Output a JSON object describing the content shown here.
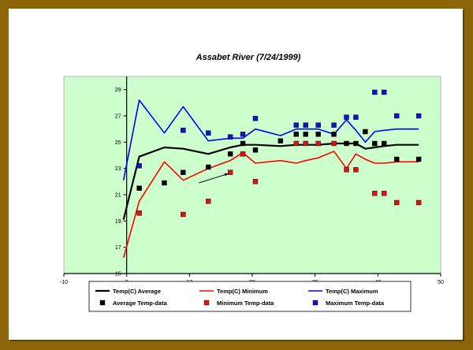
{
  "chart_data": {
    "type": "line",
    "title": "Assabet River (7/24/1999)",
    "xlabel": "",
    "ylabel": "",
    "xlim": [
      -10,
      50
    ],
    "ylim": [
      15,
      30
    ],
    "x_ticks": [
      -10,
      0,
      10,
      20,
      30,
      40,
      50
    ],
    "y_ticks": [
      15,
      17,
      19,
      21,
      23,
      25,
      27,
      29
    ],
    "grid": false,
    "plot_background": "#ccffcc",
    "legend_position": "bottom",
    "series": [
      {
        "name": "Temp(C) Average",
        "kind": "line",
        "color": "#000000",
        "x": [
          -0.5,
          2,
          6,
          9,
          13,
          16.5,
          18.5,
          20.5,
          24.5,
          27,
          28.5,
          30.5,
          33,
          35,
          36.5,
          38,
          39.5,
          41,
          43,
          46.5
        ],
        "y": [
          19.1,
          23.9,
          24.6,
          24.5,
          24.1,
          24.6,
          24.8,
          24.8,
          24.7,
          24.8,
          24.8,
          24.8,
          24.9,
          24.9,
          24.9,
          24.5,
          24.6,
          24.7,
          24.8,
          24.8
        ]
      },
      {
        "name": "Temp(C) Minimum",
        "kind": "line",
        "color": "#ff0000",
        "x": [
          -0.5,
          2,
          6,
          9,
          13,
          16.5,
          18.5,
          20.5,
          24.5,
          27,
          28.5,
          30.5,
          33,
          35,
          36.5,
          38,
          39.5,
          41,
          43,
          46.5
        ],
        "y": [
          16.2,
          20.5,
          23.5,
          22.1,
          23.0,
          23.6,
          24.2,
          23.4,
          23.6,
          23.4,
          23.6,
          23.8,
          24.3,
          23.0,
          24.1,
          23.7,
          23.4,
          23.4,
          23.5,
          23.5
        ]
      },
      {
        "name": "Temp(C) Maximum",
        "kind": "line",
        "color": "#0000ff",
        "x": [
          -0.5,
          2,
          6,
          9,
          13,
          16.5,
          18.5,
          20.5,
          24.5,
          27,
          28.5,
          30.5,
          33,
          35,
          36.5,
          38,
          39.5,
          41,
          43,
          46.5
        ],
        "y": [
          22.1,
          28.2,
          25.7,
          27.7,
          25.1,
          25.3,
          25.3,
          26.0,
          25.5,
          26.0,
          26.0,
          26.0,
          25.6,
          26.7,
          25.9,
          25.0,
          25.8,
          25.9,
          26.0,
          26.0
        ]
      },
      {
        "name": "Average Temp-data",
        "kind": "scatter",
        "color": "#000000",
        "x": [
          2,
          6,
          9,
          13,
          16.5,
          18.5,
          20.5,
          24.5,
          27,
          28.5,
          30.5,
          33,
          35,
          36.5,
          38,
          39.5,
          41,
          43,
          46.5
        ],
        "y": [
          21.5,
          21.9,
          22.7,
          23.1,
          24.1,
          24.9,
          24.4,
          25.1,
          25.6,
          25.6,
          25.6,
          25.6,
          24.9,
          24.9,
          25.8,
          24.9,
          24.9,
          23.7,
          23.7
        ]
      },
      {
        "name": "Minimum Temp-data",
        "kind": "scatter",
        "color": "#dd1111",
        "x": [
          2,
          9,
          13,
          16.5,
          18.5,
          20.5,
          27,
          28.5,
          30.5,
          33,
          35,
          36.5,
          39.5,
          41,
          43,
          46.5
        ],
        "y": [
          19.6,
          19.5,
          20.5,
          22.7,
          24.1,
          22.0,
          24.9,
          24.9,
          24.9,
          24.9,
          22.9,
          22.9,
          21.1,
          21.1,
          20.4,
          20.4
        ]
      },
      {
        "name": "Maximum Temp-data",
        "kind": "scatter",
        "color": "#1111cc",
        "x": [
          2,
          9,
          13,
          16.5,
          18.5,
          20.5,
          27,
          28.5,
          30.5,
          33,
          35,
          36.5,
          39.5,
          41,
          43,
          46.5
        ],
        "y": [
          23.2,
          25.9,
          25.7,
          25.4,
          25.6,
          26.8,
          26.3,
          26.3,
          26.3,
          26.3,
          26.9,
          26.9,
          28.8,
          28.8,
          27.0,
          27.0
        ]
      }
    ],
    "annotations": [
      {
        "type": "arrow",
        "from": [
          11.5,
          21.9
        ],
        "to": [
          16.2,
          22.6
        ]
      }
    ]
  }
}
